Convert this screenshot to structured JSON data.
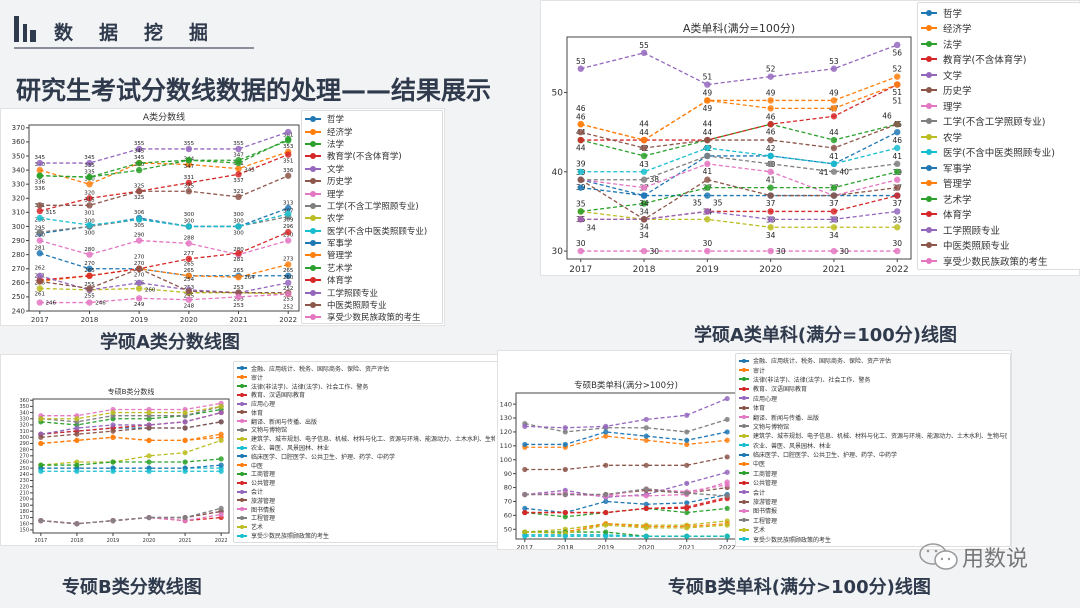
{
  "header": {
    "section_title": "数据挖掘",
    "main_title": "研究生考试分数线数据的处理——结果展示"
  },
  "captions": [
    "学硕A类分数线图",
    "学硕A类单科(满分=100分)线图",
    "专硕B类分数线图",
    "专硕B类单科(满分>100分)线图"
  ],
  "logo": {
    "text": "用数说",
    "icon": "wechat-icon"
  },
  "colors": [
    "#1f77b4",
    "#ff7f0e",
    "#2ca02c",
    "#d62728",
    "#9467bd",
    "#8c564b",
    "#e377c2",
    "#7f7f7f",
    "#bcbd22",
    "#17becf"
  ],
  "chart_data": [
    {
      "type": "line",
      "title": "A类分数线",
      "x": [
        "2017",
        "2018",
        "2019",
        "2020",
        "2021",
        "2022"
      ],
      "ylim": [
        240,
        372
      ],
      "yticks": [
        240,
        250,
        260,
        270,
        280,
        290,
        300,
        310,
        320,
        330,
        340,
        350,
        360,
        370
      ],
      "data_labels": true,
      "legend": "right",
      "series": [
        {
          "name": "哲学",
          "values": [
            295,
            300,
            306,
            300,
            300,
            313
          ]
        },
        {
          "name": "经济学",
          "values": [
            340,
            330,
            345,
            344,
            341,
            353
          ]
        },
        {
          "name": "法学",
          "values": [
            336,
            335,
            340,
            347,
            347,
            361
          ]
        },
        {
          "name": "教育学(不含体育学)",
          "values": [
            311,
            320,
            325,
            331,
            337,
            351
          ]
        },
        {
          "name": "文学",
          "values": [
            345,
            345,
            355,
            355,
            355,
            367
          ]
        },
        {
          "name": "历史学",
          "values": [
            315,
            315,
            325,
            325,
            321,
            336
          ]
        },
        {
          "name": "理学",
          "values": [
            290,
            280,
            290,
            288,
            280,
            290
          ]
        },
        {
          "name": "工学(不含工学照顾专业)",
          "values": [
            296,
            300,
            305,
            300,
            300,
            307
          ]
        },
        {
          "name": "农学",
          "values": [
            256,
            255,
            256,
            253,
            253,
            252
          ]
        },
        {
          "name": "医学(不含中医类照顾专业)",
          "values": [
            306,
            301,
            305,
            300,
            300,
            309
          ]
        },
        {
          "name": "军事学",
          "values": [
            281,
            270,
            270,
            265,
            265,
            265
          ]
        },
        {
          "name": "管理学",
          "values": [
            261,
            265,
            270,
            265,
            264,
            273
          ]
        },
        {
          "name": "艺术学",
          "values": [
            336,
            335,
            345,
            347,
            345,
            362
          ]
        },
        {
          "name": "体育学",
          "values": [
            262,
            265,
            270,
            277,
            281,
            296
          ]
        },
        {
          "name": "工学照顾专业",
          "values": [
            265,
            255,
            260,
            255,
            253,
            260
          ]
        },
        {
          "name": "中医类照顾专业",
          "values": [
            261,
            256,
            270,
            254,
            253,
            253
          ]
        },
        {
          "name": "享受少数民族政策的考生",
          "values": [
            246,
            246,
            249,
            248,
            250,
            252
          ]
        }
      ]
    },
    {
      "type": "line",
      "title": "A类单科(满分=100分)",
      "x": [
        "2017",
        "2018",
        "2019",
        "2020",
        "2021",
        "2022"
      ],
      "ylim": [
        29,
        57
      ],
      "yticks": [
        30,
        40,
        50
      ],
      "data_labels": true,
      "legend": "right",
      "series": [
        {
          "name": "哲学",
          "values": [
            39,
            37,
            42,
            42,
            41,
            45
          ]
        },
        {
          "name": "经济学",
          "values": [
            46,
            44,
            49,
            49,
            49,
            52
          ]
        },
        {
          "name": "法学",
          "values": [
            44,
            42,
            44,
            46,
            44,
            46
          ]
        },
        {
          "name": "教育学(不含体育学)",
          "values": [
            44,
            44,
            44,
            46,
            47,
            51
          ]
        },
        {
          "name": "文学",
          "values": [
            53,
            55,
            51,
            52,
            53,
            56
          ]
        },
        {
          "name": "历史学",
          "values": [
            45,
            43,
            44,
            44,
            43,
            46
          ]
        },
        {
          "name": "理学",
          "values": [
            39,
            38,
            41,
            40,
            37,
            39
          ]
        },
        {
          "name": "工学(不含工学照顾专业)",
          "values": [
            39,
            39,
            42,
            41,
            40,
            41
          ]
        },
        {
          "name": "农学",
          "values": [
            35,
            34,
            34,
            33,
            33,
            33
          ]
        },
        {
          "name": "医学(不含中医类照顾专业)",
          "values": [
            40,
            40,
            43,
            42,
            41,
            43
          ]
        },
        {
          "name": "军事学",
          "values": [
            38,
            37,
            37,
            37,
            37,
            37
          ]
        },
        {
          "name": "管理学",
          "values": [
            46,
            44,
            49,
            48,
            48,
            51
          ]
        },
        {
          "name": "艺术学",
          "values": [
            35,
            36,
            38,
            38,
            38,
            40
          ]
        },
        {
          "name": "体育学",
          "values": [
            34,
            34,
            35,
            35,
            35,
            37
          ]
        },
        {
          "name": "工学照顾专业",
          "values": [
            34,
            34,
            35,
            34,
            34,
            35
          ]
        },
        {
          "name": "中医类照顾专业",
          "values": [
            39,
            34,
            39,
            37,
            37,
            38
          ]
        },
        {
          "name": "享受少数民族政策的考生",
          "values": [
            30,
            30,
            30,
            30,
            30,
            30
          ]
        }
      ]
    },
    {
      "type": "line",
      "title": "专硕B类分数线",
      "x": [
        "2017",
        "2018",
        "2019",
        "2020",
        "2021",
        "2022"
      ],
      "ylim": [
        145,
        362
      ],
      "yticks": [
        150,
        160,
        170,
        180,
        190,
        200,
        210,
        220,
        230,
        240,
        250,
        260,
        270,
        280,
        290,
        300,
        310,
        320,
        330,
        340,
        350,
        360
      ],
      "data_labels": false,
      "legend": "right",
      "series": [
        {
          "name": "金融、应用统计、税务、国际商务、保险、资产评估",
          "values": [
            305,
            310,
            315,
            315,
            315,
            325
          ]
        },
        {
          "name": "审计",
          "values": [
            290,
            295,
            300,
            295,
            295,
            300
          ]
        },
        {
          "name": "法律(非法学)、法律(法学)、社会工作、警务",
          "values": [
            325,
            320,
            330,
            330,
            335,
            345
          ]
        },
        {
          "name": "教育、汉语国际教育",
          "values": [
            305,
            310,
            315,
            320,
            325,
            340
          ]
        },
        {
          "name": "应用心理",
          "values": [
            305,
            315,
            320,
            320,
            325,
            340
          ]
        },
        {
          "name": "体育",
          "values": [
            300,
            305,
            310,
            315,
            315,
            325
          ]
        },
        {
          "name": "翻译、新闻与传播、出版",
          "values": [
            335,
            335,
            345,
            345,
            345,
            355
          ]
        },
        {
          "name": "文物与博物馆",
          "values": [
            330,
            325,
            335,
            335,
            335,
            350
          ]
        },
        {
          "name": "建筑学、城市规划、电子信息、机械、材料与化工、资源与环境、能源动力、土木水利、生物与医药、交通运输",
          "values": [
            255,
            260,
            260,
            270,
            275,
            295
          ]
        },
        {
          "name": "农业、兽医、风景园林、林业",
          "values": [
            250,
            250,
            250,
            250,
            250,
            250
          ]
        },
        {
          "name": "临床医学、口腔医学、公共卫生、护理、药学、中药学",
          "values": [
            250,
            250,
            250,
            250,
            250,
            255
          ]
        },
        {
          "name": "中医",
          "values": [
            290,
            295,
            300,
            295,
            295,
            305
          ]
        },
        {
          "name": "工商管理",
          "values": [
            255,
            255,
            260,
            260,
            260,
            265
          ]
        },
        {
          "name": "公共管理",
          "values": [
            165,
            160,
            165,
            170,
            165,
            170
          ]
        },
        {
          "name": "会计",
          "values": [
            165,
            160,
            165,
            170,
            170,
            180
          ]
        },
        {
          "name": "旅游管理",
          "values": [
            165,
            160,
            165,
            170,
            170,
            180
          ]
        },
        {
          "name": "图书情报",
          "values": [
            165,
            160,
            165,
            170,
            165,
            175
          ]
        },
        {
          "name": "工程管理",
          "values": [
            165,
            160,
            165,
            170,
            170,
            185
          ]
        },
        {
          "name": "艺术",
          "values": [
            330,
            330,
            340,
            340,
            340,
            350
          ]
        },
        {
          "name": "享受少数民族照顾政策的考生",
          "values": [
            245,
            245,
            245,
            245,
            245,
            245
          ]
        }
      ]
    },
    {
      "type": "line",
      "title": "专硕B类单科(满分>100分)",
      "x": [
        "2017",
        "2018",
        "2019",
        "2020",
        "2021",
        "2022"
      ],
      "ylim": [
        43,
        148
      ],
      "yticks": [
        50,
        60,
        70,
        80,
        90,
        100,
        110,
        120,
        130,
        140
      ],
      "data_labels": false,
      "legend": "right",
      "series": [
        {
          "name": "金融、应用统计、税务、国际商务、保险、资产评估",
          "values": [
            65,
            62,
            70,
            68,
            69,
            75
          ]
        },
        {
          "name": "审计",
          "values": [
            109,
            109,
            117,
            114,
            111,
            114
          ]
        },
        {
          "name": "法律(非法学)、法律(法学)、社会工作、警务",
          "values": [
            62,
            59,
            62,
            65,
            62,
            65
          ]
        },
        {
          "name": "教育、汉语国际教育",
          "values": [
            62,
            62,
            62,
            65,
            65,
            72
          ]
        },
        {
          "name": "应用心理",
          "values": [
            75,
            78,
            73,
            75,
            83,
            91
          ]
        },
        {
          "name": "体育",
          "values": [
            75,
            75,
            75,
            78,
            76,
            80
          ]
        },
        {
          "name": "翻译、新闻与传播、出版",
          "values": [
            75,
            76,
            74,
            74,
            75,
            84
          ]
        },
        {
          "name": "文物与博物馆",
          "values": [
            126,
            120,
            123,
            123,
            120,
            129
          ]
        },
        {
          "name": "建筑学、城市规划、电子信息、机械、材料与化工、资源与环境、能源动力、土木水利、生物与医药、交通运输",
          "values": [
            48,
            50,
            54,
            53,
            53,
            56
          ]
        },
        {
          "name": "农业、兽医、风景园林、林业",
          "values": [
            46,
            46,
            46,
            45,
            45,
            45
          ]
        },
        {
          "name": "临床医学、口腔医学、公共卫生、护理、药学、中药学",
          "values": [
            111,
            111,
            120,
            117,
            114,
            120
          ]
        },
        {
          "name": "中医",
          "values": [
            48,
            48,
            54,
            52,
            52,
            54
          ]
        },
        {
          "name": "工商管理",
          "values": [
            48,
            48,
            48,
            45,
            45,
            45
          ]
        },
        {
          "name": "公共管理",
          "values": [
            62,
            62,
            62,
            65,
            66,
            73
          ]
        },
        {
          "name": "会计",
          "values": [
            124,
            123,
            124,
            129,
            132,
            144
          ]
        },
        {
          "name": "旅游管理",
          "values": [
            93,
            93,
            96,
            96,
            96,
            102
          ]
        },
        {
          "name": "图书情报",
          "values": [
            75,
            75,
            74,
            79,
            77,
            82
          ]
        },
        {
          "name": "工程管理",
          "values": [
            75,
            75,
            75,
            79,
            76,
            74
          ]
        },
        {
          "name": "艺术",
          "values": [
            48,
            47,
            53,
            51,
            51,
            53
          ]
        },
        {
          "name": "享受少数民族照顾政策的考生",
          "values": [
            45,
            45,
            45,
            45,
            45,
            45
          ]
        }
      ]
    }
  ]
}
